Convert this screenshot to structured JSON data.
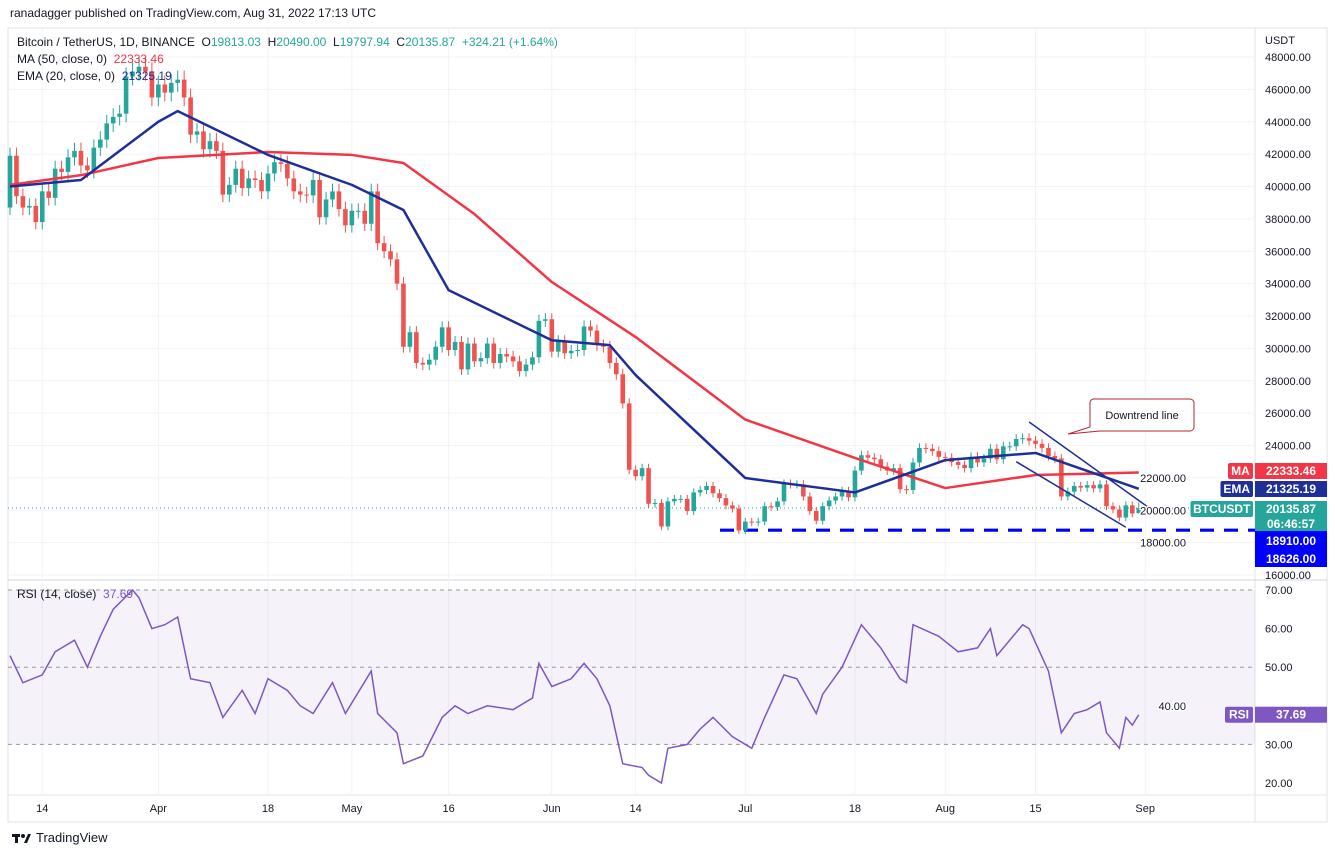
{
  "header": {
    "published": "ranadagger published on TradingView.com, Aug 31, 2022 17:13 UTC",
    "symbol": "Bitcoin / TetherUS, 1D, BINANCE",
    "open_label": "O",
    "open": "19813.03",
    "high_label": "H",
    "high": "20490.00",
    "low_label": "L",
    "low": "19797.94",
    "close_label": "C",
    "close": "20135.87",
    "change": "+324.21 (+1.64%)",
    "ma_label": "MA (50, close, 0)",
    "ma_value": "22333.46",
    "ema_label": "EMA (20, close, 0)",
    "ema_value": "21325.19",
    "rsi_label": "RSI (14, close)",
    "rsi_value": "37.69"
  },
  "footer": {
    "brand": "TradingView"
  },
  "colors": {
    "up": "#26a69a",
    "down": "#ef5350",
    "ma": "#f23645",
    "ema": "#1e2f97",
    "rsi": "#7e57c2",
    "levels": "#0000ff",
    "annotation": "#b22833"
  },
  "chart_data": [
    {
      "type": "candlestick",
      "title": "Bitcoin / TetherUS, 1D, BINANCE",
      "currency": "USDT",
      "ylim": [
        16000,
        48000
      ],
      "y_ticks": [
        "48000.00",
        "46000.00",
        "44000.00",
        "42000.00",
        "40000.00",
        "38000.00",
        "36000.00",
        "34000.00",
        "32000.00",
        "30000.00",
        "28000.00",
        "26000.00",
        "24000.00",
        "22000.00",
        "20000.00",
        "18000.00",
        "16000.00"
      ],
      "x_ticks": [
        [
          "2022-03-14",
          "14"
        ],
        [
          "2022-04-01",
          "Apr"
        ],
        [
          "2022-04-18",
          "18"
        ],
        [
          "2022-05-01",
          "May"
        ],
        [
          "2022-05-16",
          "16"
        ],
        [
          "2022-06-01",
          "Jun"
        ],
        [
          "2022-06-14",
          "14"
        ],
        [
          "2022-07-01",
          "Jul"
        ],
        [
          "2022-07-18",
          "18"
        ],
        [
          "2022-08-01",
          "Aug"
        ],
        [
          "2022-08-15",
          "15"
        ],
        [
          "2022-09-01",
          "Sep"
        ]
      ],
      "last_candle": {
        "open": 19813.03,
        "high": 20490.0,
        "low": 19797.94,
        "close": 20135.87
      },
      "closes": {
        "2022-03-09": 41900,
        "2022-03-10": 39400,
        "2022-03-11": 38700,
        "2022-03-12": 38800,
        "2022-03-13": 37800,
        "2022-03-14": 39700,
        "2022-03-15": 39300,
        "2022-03-16": 41100,
        "2022-03-17": 40900,
        "2022-03-18": 41800,
        "2022-03-19": 42200,
        "2022-03-20": 41300,
        "2022-03-21": 41000,
        "2022-03-22": 42400,
        "2022-03-23": 42900,
        "2022-03-24": 43900,
        "2022-03-25": 44300,
        "2022-03-26": 44500,
        "2022-03-27": 46800,
        "2022-03-28": 47100,
        "2022-03-29": 47400,
        "2022-03-30": 47100,
        "2022-03-31": 45500,
        "2022-04-01": 46300,
        "2022-04-02": 45800,
        "2022-04-03": 46400,
        "2022-04-04": 46600,
        "2022-04-05": 45500,
        "2022-04-06": 43200,
        "2022-04-07": 43400,
        "2022-04-08": 42300,
        "2022-04-09": 42800,
        "2022-04-10": 42200,
        "2022-04-11": 39500,
        "2022-04-12": 40100,
        "2022-04-13": 41100,
        "2022-04-14": 39900,
        "2022-04-15": 40500,
        "2022-04-16": 40400,
        "2022-04-17": 39700,
        "2022-04-18": 40800,
        "2022-04-19": 41500,
        "2022-04-20": 41400,
        "2022-04-21": 40500,
        "2022-04-22": 39700,
        "2022-04-23": 39500,
        "2022-04-24": 39450,
        "2022-04-25": 40400,
        "2022-04-26": 38100,
        "2022-04-27": 39200,
        "2022-04-28": 39700,
        "2022-04-29": 38600,
        "2022-04-30": 37600,
        "2022-05-01": 38500,
        "2022-05-02": 38500,
        "2022-05-03": 37700,
        "2022-05-04": 39700,
        "2022-05-05": 36500,
        "2022-05-06": 36000,
        "2022-05-07": 35500,
        "2022-05-08": 34000,
        "2022-05-09": 30100,
        "2022-05-10": 31000,
        "2022-05-11": 29100,
        "2022-05-12": 29000,
        "2022-05-13": 29300,
        "2022-05-14": 30100,
        "2022-05-15": 31300,
        "2022-05-16": 29900,
        "2022-05-17": 30400,
        "2022-05-18": 28700,
        "2022-05-19": 30300,
        "2022-05-20": 29200,
        "2022-05-21": 29400,
        "2022-05-22": 30300,
        "2022-05-23": 29100,
        "2022-05-24": 29650,
        "2022-05-25": 29500,
        "2022-05-26": 29200,
        "2022-05-27": 28600,
        "2022-05-28": 29000,
        "2022-05-29": 29450,
        "2022-05-30": 31700,
        "2022-05-31": 31800,
        "2022-06-01": 29800,
        "2022-06-02": 30450,
        "2022-06-03": 29700,
        "2022-06-04": 29850,
        "2022-06-05": 29900,
        "2022-06-06": 31350,
        "2022-06-07": 31100,
        "2022-06-08": 30200,
        "2022-06-09": 30100,
        "2022-06-10": 29100,
        "2022-06-11": 28400,
        "2022-06-12": 26600,
        "2022-06-13": 22500,
        "2022-06-14": 22100,
        "2022-06-15": 22600,
        "2022-06-16": 20400,
        "2022-06-17": 20450,
        "2022-06-18": 19000,
        "2022-06-19": 20550,
        "2022-06-20": 20700,
        "2022-06-21": 20700,
        "2022-06-22": 19950,
        "2022-06-23": 21100,
        "2022-06-24": 21250,
        "2022-06-25": 21500,
        "2022-06-26": 21050,
        "2022-06-27": 20750,
        "2022-06-28": 20300,
        "2022-06-29": 20100,
        "2022-06-30": 18750,
        "2022-07-01": 19300,
        "2022-07-02": 19250,
        "2022-07-03": 19300,
        "2022-07-04": 20250,
        "2022-07-05": 20200,
        "2022-07-06": 20550,
        "2022-07-07": 21650,
        "2022-07-08": 21600,
        "2022-07-09": 21600,
        "2022-07-10": 20850,
        "2022-07-11": 19950,
        "2022-07-12": 19350,
        "2022-07-13": 20250,
        "2022-07-14": 20600,
        "2022-07-15": 20850,
        "2022-07-16": 21200,
        "2022-07-17": 20800,
        "2022-07-18": 22450,
        "2022-07-19": 23400,
        "2022-07-20": 23250,
        "2022-07-21": 23150,
        "2022-07-22": 22700,
        "2022-07-23": 22450,
        "2022-07-24": 22600,
        "2022-07-25": 21300,
        "2022-07-26": 21250,
        "2022-07-27": 22950,
        "2022-07-28": 23850,
        "2022-07-29": 23800,
        "2022-07-30": 23650,
        "2022-07-31": 23300,
        "2022-08-01": 23250,
        "2022-08-02": 22980,
        "2022-08-03": 22800,
        "2022-08-04": 22600,
        "2022-08-05": 23300,
        "2022-08-06": 22950,
        "2022-08-07": 23200,
        "2022-08-08": 23800,
        "2022-08-09": 23150,
        "2022-08-10": 23950,
        "2022-08-11": 23950,
        "2022-08-12": 24400,
        "2022-08-13": 24450,
        "2022-08-14": 24300,
        "2022-08-15": 24100,
        "2022-08-16": 23850,
        "2022-08-17": 23350,
        "2022-08-18": 23200,
        "2022-08-19": 20850,
        "2022-08-20": 21150,
        "2022-08-21": 21500,
        "2022-08-22": 21400,
        "2022-08-23": 21550,
        "2022-08-24": 21350,
        "2022-08-25": 21600,
        "2022-08-26": 20250,
        "2022-08-27": 20050,
        "2022-08-28": 19550,
        "2022-08-29": 20300,
        "2022-08-30": 19800,
        "2022-08-31": 20135.87
      },
      "ma50": [
        [
          "2022-03-09",
          40100
        ],
        [
          "2022-03-20",
          40700
        ],
        [
          "2022-04-01",
          41760
        ],
        [
          "2022-04-18",
          42130
        ],
        [
          "2022-05-01",
          41950
        ],
        [
          "2022-05-09",
          41450
        ],
        [
          "2022-05-20",
          38300
        ],
        [
          "2022-06-01",
          34100
        ],
        [
          "2022-06-14",
          30700
        ],
        [
          "2022-07-01",
          25600
        ],
        [
          "2022-07-18",
          23230
        ],
        [
          "2022-08-01",
          21370
        ],
        [
          "2022-08-15",
          22180
        ],
        [
          "2022-08-31",
          22333.46
        ]
      ],
      "ema20": [
        [
          "2022-03-09",
          40000
        ],
        [
          "2022-03-20",
          40400
        ],
        [
          "2022-04-01",
          44000
        ],
        [
          "2022-04-04",
          44660
        ],
        [
          "2022-04-18",
          41950
        ],
        [
          "2022-05-01",
          40100
        ],
        [
          "2022-05-09",
          38550
        ],
        [
          "2022-05-16",
          33600
        ],
        [
          "2022-06-01",
          30500
        ],
        [
          "2022-06-10",
          30200
        ],
        [
          "2022-06-14",
          28350
        ],
        [
          "2022-07-01",
          21990
        ],
        [
          "2022-07-18",
          21100
        ],
        [
          "2022-08-01",
          23100
        ],
        [
          "2022-08-15",
          23540
        ],
        [
          "2022-08-31",
          21325.19
        ]
      ],
      "horizontal_levels": [
        18910.0,
        18626.0
      ],
      "price_labels": [
        {
          "name": "MA",
          "value": "22333.46"
        },
        {
          "name": "EMA",
          "value": "21325.19"
        },
        {
          "name": "BTCUSDT",
          "value": "20135.87",
          "countdown": "06:46:57"
        },
        {
          "name": "",
          "value": "18910.00"
        },
        {
          "name": "",
          "value": "18626.00"
        }
      ],
      "trendlines": [
        {
          "from": [
            "2022-08-14",
            25450
          ],
          "to": [
            "2022-09-03",
            19750
          ]
        },
        {
          "from": [
            "2022-08-12",
            23000
          ],
          "to": [
            "2022-08-29",
            18950
          ]
        }
      ],
      "annotation": "Downtrend line"
    },
    {
      "type": "line",
      "title": "RSI (14, close)",
      "ylim": [
        17,
        72
      ],
      "y_ticks": [
        "70.00",
        "60.00",
        "50.00",
        "40.00",
        "30.00",
        "20.00"
      ],
      "band": [
        30,
        70
      ],
      "current": "37.69",
      "values": [
        [
          "2022-03-09",
          53
        ],
        [
          "2022-03-11",
          46
        ],
        [
          "2022-03-14",
          48
        ],
        [
          "2022-03-16",
          54
        ],
        [
          "2022-03-19",
          57
        ],
        [
          "2022-03-21",
          50
        ],
        [
          "2022-03-23",
          58
        ],
        [
          "2022-03-25",
          65
        ],
        [
          "2022-03-28",
          70
        ],
        [
          "2022-03-29",
          68
        ],
        [
          "2022-03-31",
          60
        ],
        [
          "2022-04-02",
          61
        ],
        [
          "2022-04-04",
          63
        ],
        [
          "2022-04-06",
          47
        ],
        [
          "2022-04-09",
          46
        ],
        [
          "2022-04-11",
          37
        ],
        [
          "2022-04-14",
          44
        ],
        [
          "2022-04-16",
          38
        ],
        [
          "2022-04-18",
          47
        ],
        [
          "2022-04-21",
          44
        ],
        [
          "2022-04-23",
          40
        ],
        [
          "2022-04-25",
          38
        ],
        [
          "2022-04-28",
          46
        ],
        [
          "2022-04-30",
          38
        ],
        [
          "2022-05-04",
          49
        ],
        [
          "2022-05-05",
          38
        ],
        [
          "2022-05-08",
          33
        ],
        [
          "2022-05-09",
          25
        ],
        [
          "2022-05-12",
          27
        ],
        [
          "2022-05-15",
          37
        ],
        [
          "2022-05-17",
          40
        ],
        [
          "2022-05-19",
          38
        ],
        [
          "2022-05-22",
          40
        ],
        [
          "2022-05-26",
          39
        ],
        [
          "2022-05-29",
          42
        ],
        [
          "2022-05-30",
          51
        ],
        [
          "2022-06-01",
          45
        ],
        [
          "2022-06-04",
          47
        ],
        [
          "2022-06-06",
          51
        ],
        [
          "2022-06-08",
          47
        ],
        [
          "2022-06-10",
          40
        ],
        [
          "2022-06-12",
          25
        ],
        [
          "2022-06-15",
          24
        ],
        [
          "2022-06-16",
          22
        ],
        [
          "2022-06-18",
          20
        ],
        [
          "2022-06-19",
          29
        ],
        [
          "2022-06-22",
          30
        ],
        [
          "2022-06-24",
          34
        ],
        [
          "2022-06-26",
          37
        ],
        [
          "2022-06-29",
          32
        ],
        [
          "2022-07-02",
          29
        ],
        [
          "2022-07-04",
          37
        ],
        [
          "2022-07-07",
          48
        ],
        [
          "2022-07-09",
          47
        ],
        [
          "2022-07-12",
          38
        ],
        [
          "2022-07-13",
          43
        ],
        [
          "2022-07-16",
          50
        ],
        [
          "2022-07-19",
          61
        ],
        [
          "2022-07-22",
          55
        ],
        [
          "2022-07-25",
          47
        ],
        [
          "2022-07-26",
          46
        ],
        [
          "2022-07-27",
          61
        ],
        [
          "2022-07-31",
          58
        ],
        [
          "2022-08-03",
          54
        ],
        [
          "2022-08-06",
          55
        ],
        [
          "2022-08-08",
          60
        ],
        [
          "2022-08-09",
          53
        ],
        [
          "2022-08-13",
          61
        ],
        [
          "2022-08-14",
          60
        ],
        [
          "2022-08-17",
          49
        ],
        [
          "2022-08-19",
          33
        ],
        [
          "2022-08-21",
          38
        ],
        [
          "2022-08-23",
          39
        ],
        [
          "2022-08-25",
          41
        ],
        [
          "2022-08-26",
          33
        ],
        [
          "2022-08-28",
          29
        ],
        [
          "2022-08-29",
          37
        ],
        [
          "2022-08-30",
          35
        ],
        [
          "2022-08-31",
          37.69
        ]
      ]
    }
  ]
}
